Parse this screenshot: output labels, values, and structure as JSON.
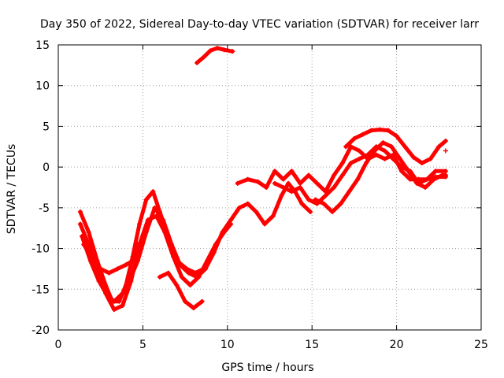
{
  "chart_data": {
    "type": "scatter",
    "title": "Day 350 of 2022, Sidereal Day-to-day VTEC variation (SDTVAR) for receiver larr",
    "xlabel": "GPS time / hours",
    "ylabel": "SDTVAR / TECUs",
    "xlim": [
      0,
      25
    ],
    "ylim": [
      -20,
      15
    ],
    "x_ticks": [
      0,
      5,
      10,
      15,
      20,
      25
    ],
    "y_ticks": [
      -20,
      -15,
      -10,
      -5,
      0,
      5,
      10,
      15
    ],
    "x_tick_labels": [
      "0",
      "5",
      "10",
      "15",
      "20",
      "25"
    ],
    "y_tick_labels": [
      "-20",
      "-15",
      "-10",
      "-5",
      "0",
      "5",
      "10",
      "15"
    ],
    "grid": true,
    "legend": "none",
    "marker": "+",
    "color": "#ff0000",
    "series": [
      {
        "x": [
          1.3,
          1.8,
          2.3,
          2.8,
          3.2,
          3.6,
          4.0,
          4.4,
          4.8,
          5.2,
          5.6,
          6.0,
          6.5,
          7.0,
          7.6,
          8.1,
          8.6
        ],
        "y": [
          -5.5,
          -8.0,
          -11.5,
          -14.5,
          -16.5,
          -16.5,
          -14.5,
          -11.0,
          -7.0,
          -4.0,
          -3.0,
          -5.5,
          -8.5,
          -11.5,
          -12.5,
          -13.0,
          -12.5
        ]
      },
      {
        "x": [
          1.3,
          1.8,
          2.3,
          2.8,
          3.3,
          3.8,
          4.3,
          4.8,
          5.3,
          5.8,
          6.3,
          6.8,
          7.3,
          7.8,
          8.3,
          8.8,
          9.3,
          9.8,
          10.2
        ],
        "y": [
          -7.0,
          -9.5,
          -12.5,
          -15.5,
          -17.5,
          -17.0,
          -14.0,
          -9.5,
          -6.5,
          -6.0,
          -8.0,
          -11.0,
          -13.5,
          -14.5,
          -13.5,
          -11.5,
          -9.5,
          -8.0,
          -7.0
        ]
      },
      {
        "x": [
          1.4,
          1.9,
          2.4,
          2.9,
          3.3,
          3.8,
          4.3,
          4.7,
          5.2,
          5.7,
          6.2,
          6.7,
          7.2,
          7.7,
          8.2,
          8.7,
          9.2,
          9.7,
          10.2,
          10.7,
          11.2,
          11.7,
          12.2,
          12.7,
          13.2,
          13.6,
          14.0,
          14.4,
          14.9
        ],
        "y": [
          -8.5,
          -11.5,
          -14.0,
          -15.8,
          -16.5,
          -15.5,
          -13.5,
          -11.5,
          -8.0,
          -5.0,
          -6.5,
          -9.5,
          -12.0,
          -13.0,
          -13.5,
          -12.5,
          -10.5,
          -8.0,
          -6.5,
          -5.0,
          -4.5,
          -5.5,
          -7.0,
          -6.0,
          -3.5,
          -2.0,
          -3.0,
          -4.5,
          -5.5
        ]
      },
      {
        "x": [
          1.5,
          2.0,
          2.5,
          3.0,
          3.5,
          4.0,
          4.4,
          4.7
        ],
        "y": [
          -9.5,
          -11.0,
          -12.5,
          -13.0,
          -12.5,
          -12.0,
          -11.5,
          -9.5
        ]
      },
      {
        "x": [
          6.0,
          6.5,
          7.0,
          7.5,
          8.0,
          8.5
        ],
        "y": [
          -13.5,
          -13.0,
          -14.5,
          -16.5,
          -17.3,
          -16.5
        ]
      },
      {
        "x": [
          8.2,
          8.6,
          9.0,
          9.4,
          9.8,
          10.3
        ],
        "y": [
          12.8,
          13.5,
          14.3,
          14.6,
          14.4,
          14.2
        ]
      },
      {
        "x": [
          10.6,
          11.2,
          11.8,
          12.3,
          12.8,
          13.3,
          13.8,
          14.3,
          14.8,
          15.3,
          15.8,
          16.3,
          16.8,
          17.3,
          17.8,
          18.3,
          18.8,
          19.3,
          19.8,
          20.3,
          20.8,
          21.3,
          21.8,
          22.3,
          22.9
        ],
        "y": [
          -2.0,
          -1.5,
          -1.8,
          -2.5,
          -0.5,
          -1.5,
          -0.5,
          -2.0,
          -1.0,
          -2.0,
          -3.0,
          -1.0,
          0.5,
          2.5,
          2.0,
          1.0,
          1.5,
          1.0,
          1.5,
          -0.5,
          -1.5,
          -1.5,
          -1.5,
          -1.2,
          -1.2
        ]
      },
      {
        "x": [
          12.8,
          13.3,
          13.8,
          14.3,
          14.8,
          15.3,
          15.8,
          16.3,
          16.8,
          17.3,
          17.8,
          18.3,
          18.8,
          19.3,
          19.8,
          20.3,
          20.8,
          21.3,
          21.8,
          22.3,
          22.9
        ],
        "y": [
          -2.0,
          -2.5,
          -3.0,
          -2.5,
          -4.0,
          -4.5,
          -3.5,
          -2.5,
          -1.0,
          0.5,
          1.0,
          1.5,
          2.5,
          2.0,
          1.0,
          0.0,
          -0.5,
          -2.0,
          -1.5,
          -0.5,
          -0.5
        ]
      },
      {
        "x": [
          15.2,
          15.7,
          16.2,
          16.7,
          17.2,
          17.7,
          18.2,
          18.7,
          19.2,
          19.7,
          20.2,
          20.7,
          21.2,
          21.7,
          22.2,
          22.7,
          22.9
        ],
        "y": [
          -4.0,
          -4.5,
          -5.5,
          -4.5,
          -3.0,
          -1.5,
          0.5,
          2.0,
          3.0,
          2.5,
          1.0,
          -0.5,
          -2.0,
          -2.5,
          -1.5,
          -1.0,
          -1.0
        ]
      },
      {
        "x": [
          17.0,
          17.5,
          18.0,
          18.5,
          19.0,
          19.5,
          20.0,
          20.5,
          21.0,
          21.5,
          22.0,
          22.5,
          22.9
        ],
        "y": [
          2.5,
          3.5,
          4.0,
          4.5,
          4.6,
          4.5,
          3.8,
          2.5,
          1.2,
          0.5,
          1.0,
          2.5,
          3.2
        ]
      },
      {
        "x": [
          22.9
        ],
        "y": [
          2.0
        ]
      }
    ]
  }
}
